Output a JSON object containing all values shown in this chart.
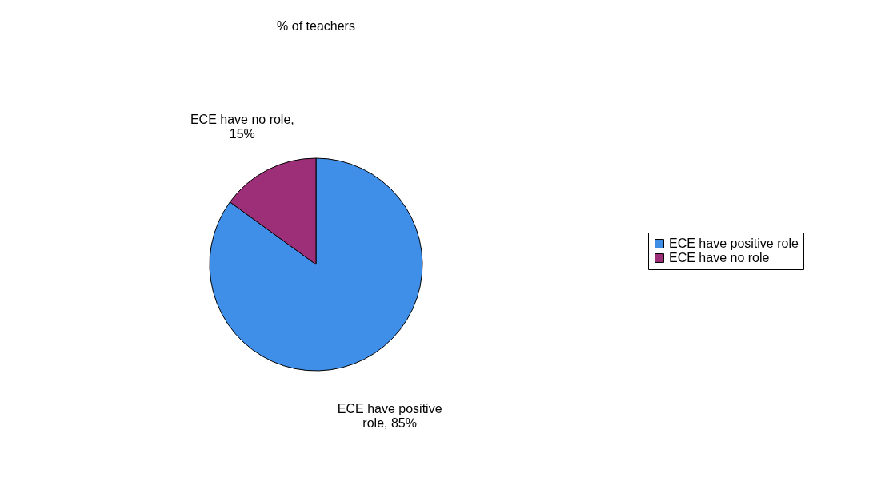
{
  "chart_data": {
    "type": "pie",
    "title": "% of teachers",
    "categories": [
      "ECE have positive role",
      "ECE have no role"
    ],
    "values": [
      85,
      15
    ],
    "colors": [
      "#3f8fe8",
      "#9c2f78"
    ],
    "value_labels": [
      "ECE have positive\nrole, 85%",
      "ECE have no role,\n15%"
    ],
    "legend": "right"
  }
}
